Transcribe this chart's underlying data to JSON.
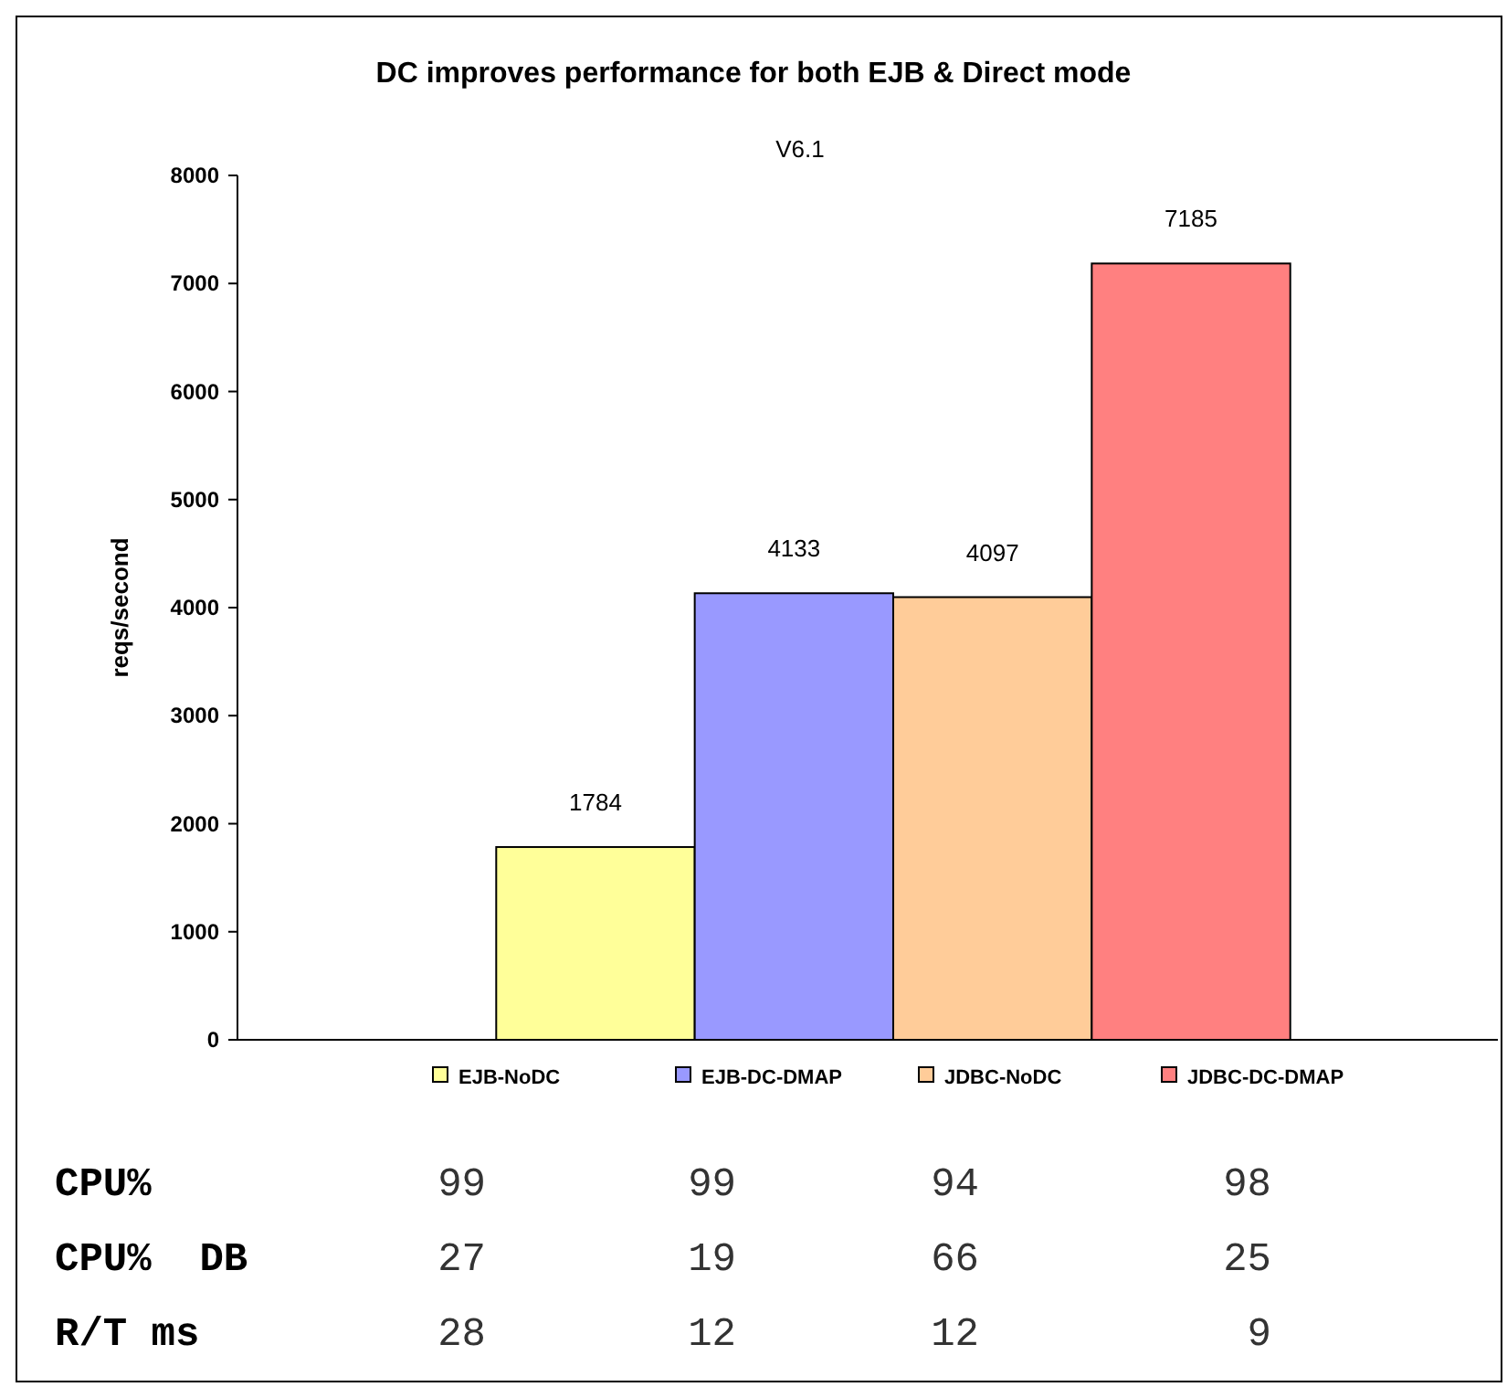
{
  "chart_data": {
    "type": "bar",
    "title": "DC improves performance for both EJB & Direct mode",
    "subtitle": "V6.1",
    "ylabel": "reqs/second",
    "categories": [
      null
    ],
    "series": [
      {
        "name": "EJB-NoDC",
        "color": "#ffff99",
        "values": [
          1784
        ]
      },
      {
        "name": "EJB-DC-DMAP",
        "color": "#9999ff",
        "values": [
          4133
        ]
      },
      {
        "name": "JDBC-NoDC",
        "color": "#ffcc99",
        "values": [
          4097
        ]
      },
      {
        "name": "JDBC-DC-DMAP",
        "color": "#ff8080",
        "values": [
          7185
        ]
      }
    ],
    "ylim": [
      0,
      8000
    ],
    "yticks": [
      0,
      1000,
      2000,
      3000,
      4000,
      5000,
      6000,
      7000,
      8000
    ],
    "grid": false,
    "data_labels": true,
    "legend": "bottom",
    "annotations": [
      "CPU%",
      "99",
      "99",
      "94",
      "98",
      "CPU%  DB",
      "27",
      "19",
      "66",
      "25",
      "R/T ms",
      "28",
      "12",
      "12",
      "9"
    ]
  }
}
